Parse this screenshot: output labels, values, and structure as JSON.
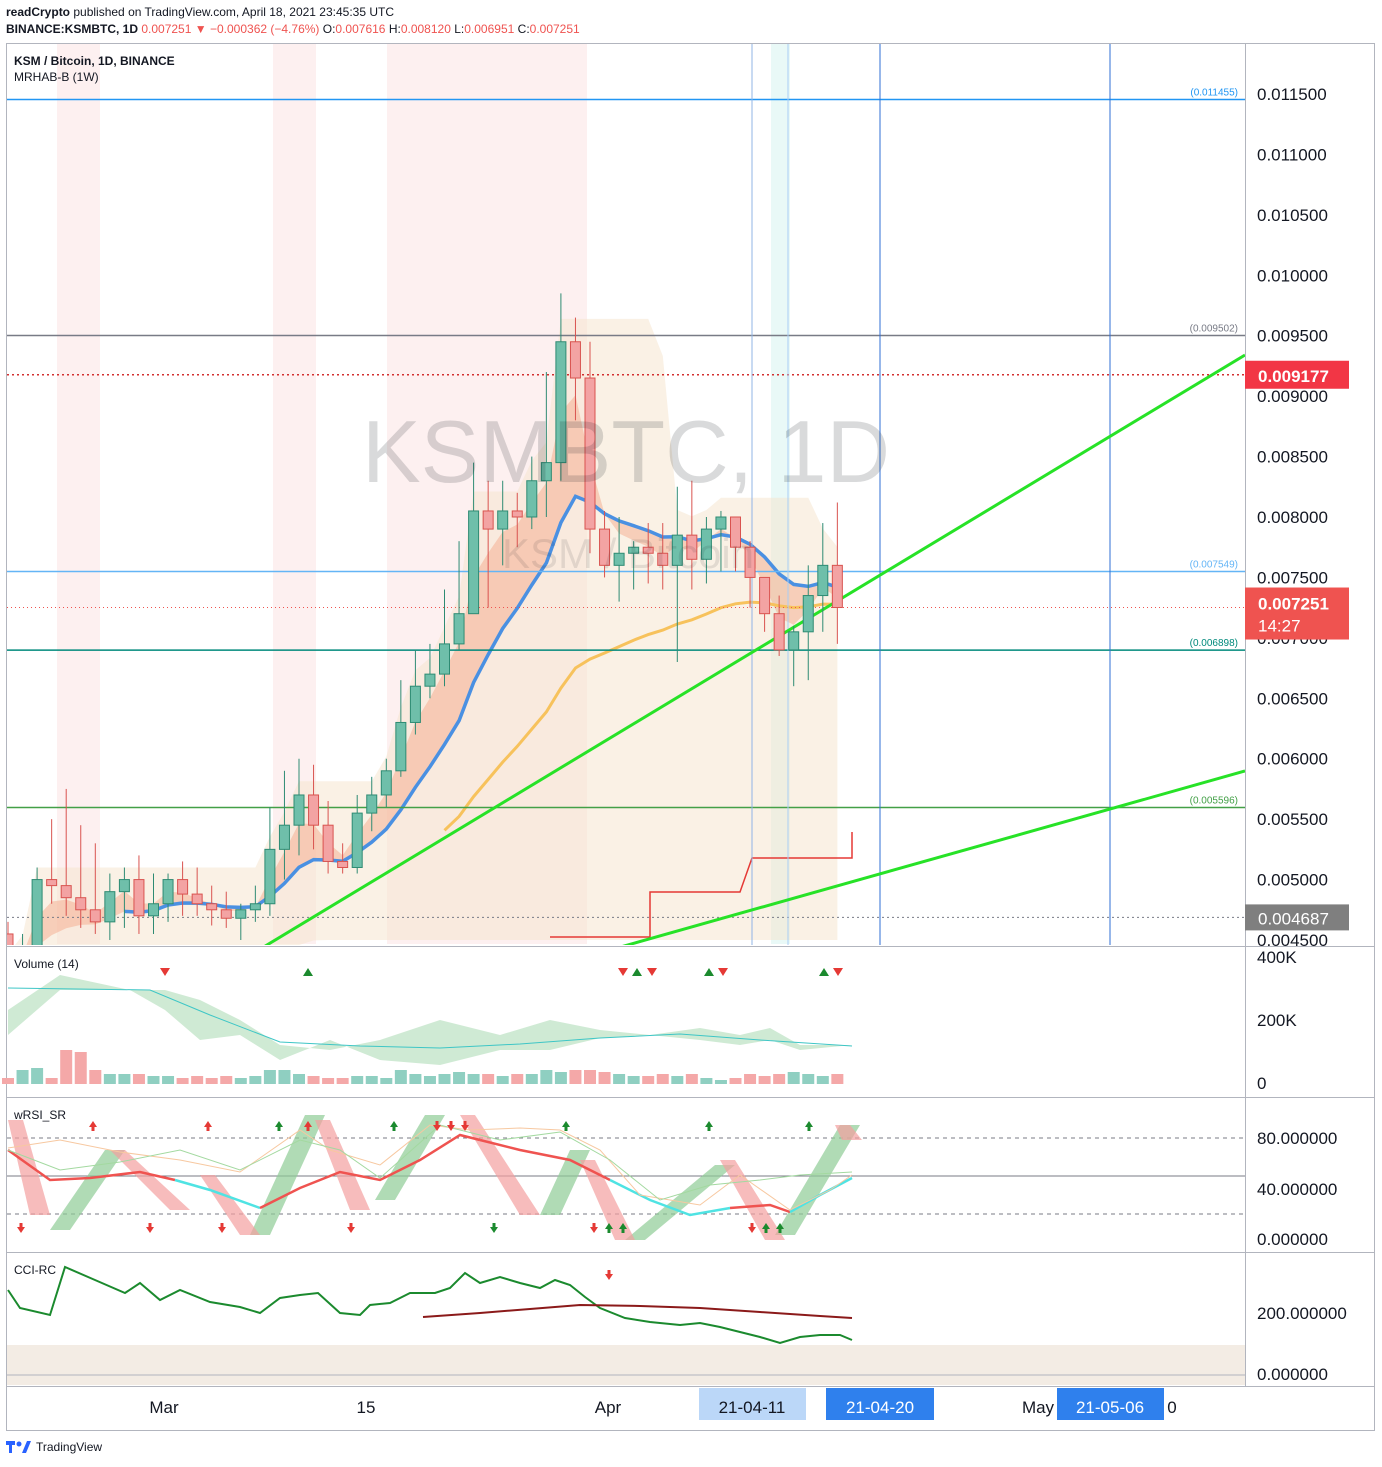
{
  "header": {
    "publisher": "readCrypto",
    "published_text": "published on TradingView.com, April 18, 2021 23:45:35 UTC",
    "symbol": "BINANCE:KSMBTC, 1D",
    "last": "0.007251",
    "change_arrow": "▼",
    "change": "−0.000362 (−4.76%)",
    "o_label": "O:",
    "o": "0.007616",
    "h_label": "H:",
    "h": "0.008120",
    "l_label": "L:",
    "l": "0.006951",
    "c_label": "C:",
    "c": "0.007251"
  },
  "legend": {
    "title": "KSM / Bitcoin, 1D, BINANCE",
    "indicator": "MRHAB-B (1W)"
  },
  "watermark": {
    "main": "KSMBTC, 1D",
    "sub": "KSM / Bitcoin"
  },
  "price_axis": {
    "ticks": [
      "0.011500",
      "0.011000",
      "0.010500",
      "0.010000",
      "0.009500",
      "0.009000",
      "0.008500",
      "0.008000",
      "0.007500",
      "0.007000",
      "0.006500",
      "0.006000",
      "0.005500",
      "0.005000",
      "0.004500"
    ],
    "badges": {
      "red_level": "0.009177",
      "current_price": "0.007251",
      "countdown": "14:27",
      "gray_level": "0.004687"
    },
    "colors": {
      "red": "#f23645",
      "current": "#ef5350",
      "gray": "#7f7f7f"
    }
  },
  "levels": [
    {
      "value": 0.011455,
      "label": "(0.011455)",
      "color": "#2196f3"
    },
    {
      "value": 0.009502,
      "label": "(0.009502)",
      "color": "#787b86"
    },
    {
      "value": 0.007549,
      "label": "(0.007549)",
      "color": "#64b5f6"
    },
    {
      "value": 0.006898,
      "label": "(0.006898)",
      "color": "#00897b"
    },
    {
      "value": 0.005596,
      "label": "(0.005596)",
      "color": "#43a047"
    }
  ],
  "panes": {
    "volume": {
      "title": "Volume (14)",
      "ticks": [
        "400K",
        "200K",
        "0"
      ]
    },
    "rsi": {
      "title": "wRSI_SR",
      "ticks": [
        "80.000000",
        "40.000000",
        "0.000000"
      ]
    },
    "cci": {
      "title": "CCI-RC",
      "ticks": [
        "200.000000",
        "0.000000"
      ]
    }
  },
  "time_axis": {
    "labels": [
      "Mar",
      "15",
      "Apr",
      "May",
      "0"
    ],
    "badges": [
      "21-04-11",
      "21-04-20",
      "21-05-06"
    ]
  },
  "footer": {
    "brand": "TradingView"
  },
  "chart_data": {
    "type": "candlestick",
    "symbol": "KSMBTC",
    "interval": "1D",
    "ylim": [
      0.0045,
      0.0117
    ],
    "x": [
      "2021-02-20",
      "2021-02-21",
      "2021-02-22",
      "2021-02-23",
      "2021-02-24",
      "2021-02-25",
      "2021-02-26",
      "2021-02-27",
      "2021-02-28",
      "2021-03-01",
      "2021-03-02",
      "2021-03-03",
      "2021-03-04",
      "2021-03-05",
      "2021-03-06",
      "2021-03-07",
      "2021-03-08",
      "2021-03-09",
      "2021-03-10",
      "2021-03-11",
      "2021-03-12",
      "2021-03-13",
      "2021-03-14",
      "2021-03-15",
      "2021-03-16",
      "2021-03-17",
      "2021-03-18",
      "2021-03-19",
      "2021-03-20",
      "2021-03-21",
      "2021-03-22",
      "2021-03-23",
      "2021-03-24",
      "2021-03-25",
      "2021-03-26",
      "2021-03-27",
      "2021-03-28",
      "2021-03-29",
      "2021-03-30",
      "2021-03-31",
      "2021-04-01",
      "2021-04-02",
      "2021-04-03",
      "2021-04-04",
      "2021-04-05",
      "2021-04-06",
      "2021-04-07",
      "2021-04-08",
      "2021-04-09",
      "2021-04-10",
      "2021-04-11",
      "2021-04-12",
      "2021-04-13",
      "2021-04-14",
      "2021-04-15",
      "2021-04-16",
      "2021-04-17",
      "2021-04-18"
    ],
    "open": [
      0.00455,
      0.0043,
      0.00445,
      0.005,
      0.00495,
      0.00485,
      0.00475,
      0.00465,
      0.0049,
      0.005,
      0.0047,
      0.0048,
      0.005,
      0.00488,
      0.0048,
      0.00475,
      0.00468,
      0.00475,
      0.0048,
      0.00525,
      0.00545,
      0.0057,
      0.00545,
      0.00515,
      0.0051,
      0.00555,
      0.0057,
      0.0059,
      0.0063,
      0.0066,
      0.0067,
      0.00695,
      0.0072,
      0.00805,
      0.0079,
      0.00805,
      0.008,
      0.0083,
      0.00845,
      0.00945,
      0.00915,
      0.0079,
      0.0076,
      0.0077,
      0.00775,
      0.0077,
      0.0076,
      0.00785,
      0.00765,
      0.0079,
      0.008,
      0.00775,
      0.0075,
      0.0072,
      0.0069,
      0.00705,
      0.00735,
      0.0076
    ],
    "high": [
      0.00465,
      0.00455,
      0.0051,
      0.0055,
      0.00575,
      0.00545,
      0.0053,
      0.00505,
      0.0051,
      0.0052,
      0.00505,
      0.00505,
      0.00515,
      0.0051,
      0.00495,
      0.0049,
      0.0048,
      0.00495,
      0.0056,
      0.0059,
      0.006,
      0.00595,
      0.00565,
      0.0053,
      0.0057,
      0.00585,
      0.006,
      0.00665,
      0.0069,
      0.00695,
      0.0074,
      0.0078,
      0.00845,
      0.0083,
      0.0083,
      0.0082,
      0.0085,
      0.0092,
      0.00985,
      0.00965,
      0.00945,
      0.00805,
      0.008,
      0.0078,
      0.00795,
      0.00795,
      0.00825,
      0.0083,
      0.008,
      0.00805,
      0.00795,
      0.0078,
      0.0075,
      0.00735,
      0.0071,
      0.0076,
      0.00795,
      0.00812
    ],
    "low": [
      0.0042,
      0.0042,
      0.0043,
      0.0048,
      0.0047,
      0.0046,
      0.00455,
      0.0045,
      0.0046,
      0.00455,
      0.00455,
      0.00465,
      0.0047,
      0.0047,
      0.00462,
      0.0046,
      0.0045,
      0.00465,
      0.0047,
      0.005,
      0.0052,
      0.00525,
      0.00505,
      0.00505,
      0.00505,
      0.0054,
      0.0056,
      0.00585,
      0.0062,
      0.0065,
      0.0066,
      0.0069,
      0.0072,
      0.00725,
      0.0076,
      0.00775,
      0.0079,
      0.008,
      0.0083,
      0.0088,
      0.0077,
      0.0075,
      0.0073,
      0.0074,
      0.00745,
      0.0074,
      0.0068,
      0.0074,
      0.00745,
      0.00755,
      0.00755,
      0.00725,
      0.00705,
      0.00685,
      0.0066,
      0.00665,
      0.00705,
      0.00695
    ],
    "close": [
      0.0043,
      0.00445,
      0.005,
      0.00495,
      0.00485,
      0.00475,
      0.00465,
      0.0049,
      0.005,
      0.0047,
      0.0048,
      0.005,
      0.00488,
      0.0048,
      0.00475,
      0.00468,
      0.00475,
      0.0048,
      0.00525,
      0.00545,
      0.0057,
      0.00545,
      0.00515,
      0.0051,
      0.00555,
      0.0057,
      0.0059,
      0.0063,
      0.0066,
      0.0067,
      0.00695,
      0.0072,
      0.00805,
      0.0079,
      0.00805,
      0.008,
      0.0083,
      0.00845,
      0.00945,
      0.00915,
      0.0079,
      0.0076,
      0.0077,
      0.00775,
      0.0077,
      0.0076,
      0.00785,
      0.00765,
      0.0079,
      0.008,
      0.00775,
      0.0075,
      0.0072,
      0.0069,
      0.00705,
      0.00735,
      0.0076,
      0.007251
    ]
  }
}
